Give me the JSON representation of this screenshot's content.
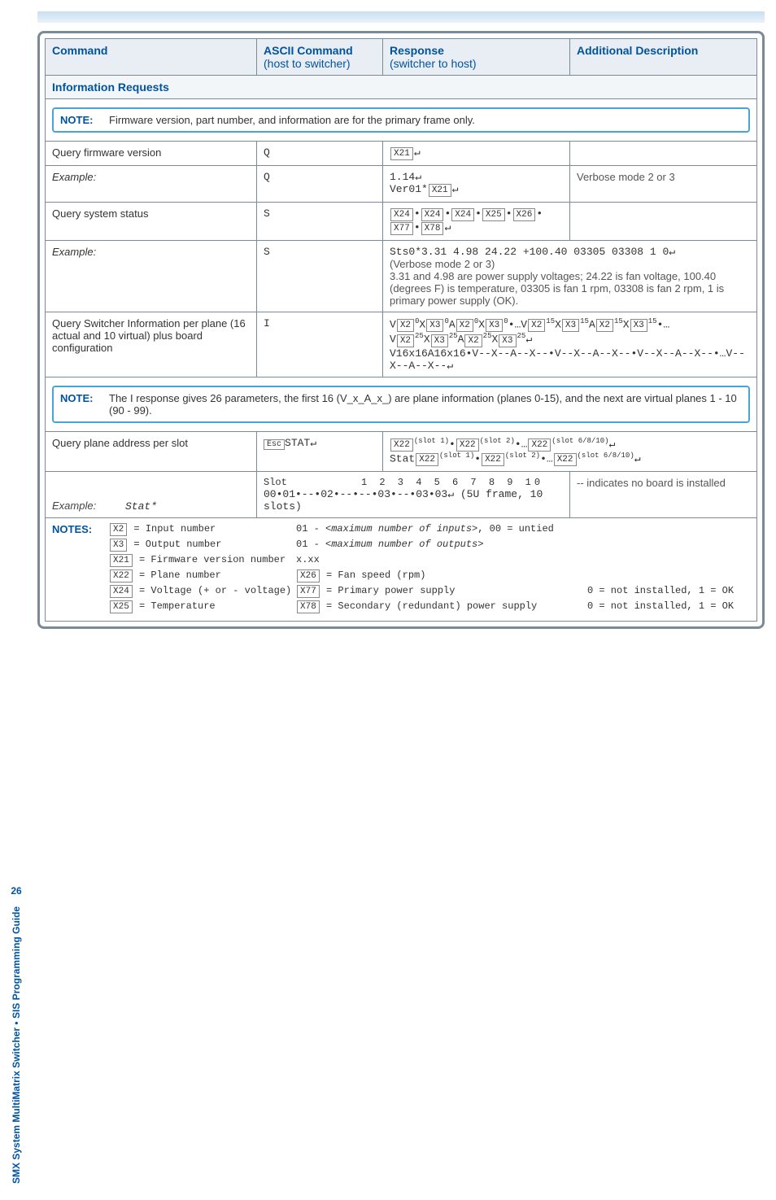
{
  "page_number": "26",
  "sidebar_text": "SMX System MultiMatrix Switcher • SIS Programming Guide",
  "headers": {
    "c1": "Command",
    "c2": "ASCII Command\n(host to switcher)",
    "c3": "Response\n(switcher to host)",
    "c4": "Additional Description"
  },
  "section_title": "Information Requests",
  "note1": {
    "label": "NOTE:",
    "text": "Firmware version, part number, and information are for the primary frame only."
  },
  "r_fw": {
    "cmd": "Query firmware version",
    "ascii": "Q",
    "resp_var": "X21",
    "resp_tail": "↵"
  },
  "r_fw_ex": {
    "cmd": "Example:",
    "ascii": "Q",
    "resp1": "1.14↵",
    "resp2_pre": "Ver01*",
    "resp2_var": "X21",
    "resp2_tail": "↵",
    "desc": "Verbose mode 2 or 3"
  },
  "r_sys": {
    "cmd": "Query system status",
    "ascii": "S",
    "resp_vars": [
      "X24",
      "X24",
      "X24",
      "X25",
      "X26",
      "X77",
      "X78"
    ],
    "resp_tail": "↵"
  },
  "r_sys_ex": {
    "cmd": "Example:",
    "ascii": "S",
    "line1": "Sts0*3.31 4.98 24.22 +100.40 03305 03308 1 0↵",
    "line1_note": "(Verbose mode 2 or 3)",
    "line2": "3.31 and 4.98 are power supply voltages; 24.22 is fan voltage, 100.40 (degrees F) is temperature, 03305 is fan 1 rpm, 03308 is fan 2 rpm, 1 is primary power supply (OK)."
  },
  "r_info": {
    "cmd": "Query Switcher Information per plane (16 actual and 10 virtual) plus board configuration",
    "ascii": "I",
    "l1_pre": "V",
    "l1_post": "•…V",
    "l1_tail": "•…",
    "l2_pre": "V",
    "l2_tail": "↵",
    "l3": "V16x16A16x16•V--X--A--X--•V--X--A--X--•V--X--A--X--•…V--X--A--X--↵"
  },
  "note2": {
    "label": "NOTE:",
    "text": "The I response gives 26 parameters, the first 16 (V_x_A_x_) are plane information (planes 0-15), and the next are virtual planes 1 - 10 (90 - 99)."
  },
  "r_plane": {
    "cmd": "Query plane address per slot",
    "ascii_pre": "",
    "ascii_post": "STAT↵",
    "resp1_vars": [
      "X22",
      "X22",
      "X22"
    ],
    "resp1_sups": [
      "(slot 1)",
      "(slot 2)",
      "(slot 6/8/10)"
    ],
    "resp1_tail": "↵",
    "resp2_pre": "Stat",
    "resp2_vars": [
      "X22",
      "X22",
      "X22"
    ],
    "resp2_sups": [
      "(slot 1)",
      "(slot 2)",
      "(slot 6/8/10)"
    ],
    "resp2_tail": "↵"
  },
  "r_plane_ex": {
    "slot_label": "Slot",
    "slots": "1 2 3 4 5 6 7 8 9 10",
    "stat_label": "Stat*",
    "stat_line": "00•01•--•02•--•--•03•--•03•03↵ (5U frame, 10 slots)",
    "desc": "-- indicates no board is installed",
    "cmd": "Example:"
  },
  "notes_footer": {
    "label": "NOTES:",
    "items": [
      {
        "var": "X2",
        "eq": " = Input number",
        "extra_pre": "01 - ",
        "extra_mid": "<maximum number of inputs>",
        "extra_post": ", 00 = untied"
      },
      {
        "var": "X3",
        "eq": " = Output number",
        "extra_pre": "01 - ",
        "extra_mid": "<maximum number of outputs>",
        "extra_post": ""
      },
      {
        "var": "X21",
        "eq": " = Firmware version number",
        "extra_pre": "x.xx",
        "extra_mid": "",
        "extra_post": ""
      },
      {
        "var": "X22",
        "eq": " = Plane number",
        "annot_var": "X26",
        "annot": " = Fan speed (rpm)"
      },
      {
        "var": "X24",
        "eq": " = Voltage (+ or - voltage)",
        "annot_var": "X77",
        "annot": " = Primary power supply",
        "right": "0 = not installed, 1 = OK"
      },
      {
        "var": "X25",
        "eq": " = Temperature",
        "annot_var": "X78",
        "annot": " = Secondary (redundant) power supply",
        "right": "0 = not installed, 1 = OK"
      }
    ]
  }
}
